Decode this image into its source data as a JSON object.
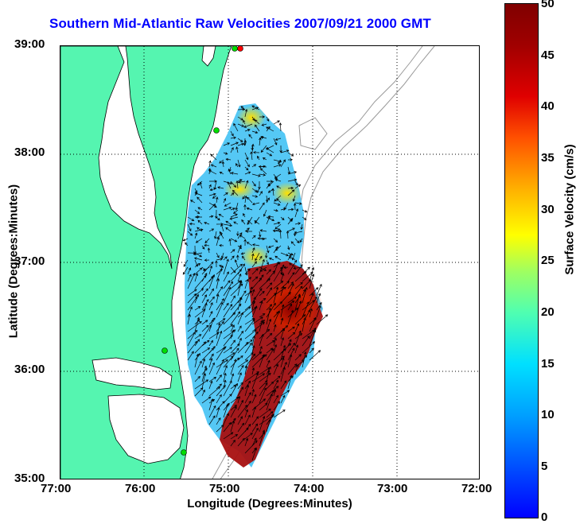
{
  "title": "Southern Mid-Atlantic Raw Velocities 2007/09/21 2000 GMT",
  "x_axis": {
    "label": "Longitude (Degrees:Minutes)",
    "ticks": [
      "77:00",
      "76:00",
      "75:00",
      "74:00",
      "73:00",
      "72:00"
    ]
  },
  "y_axis": {
    "label": "Latitude (Degrees:Minutes)",
    "ticks": [
      "39:00",
      "38:00",
      "37:00",
      "36:00",
      "35:00"
    ]
  },
  "colorbar": {
    "label": "Surface Velocity (cm/s)",
    "ticks": [
      "50",
      "45",
      "40",
      "35",
      "30",
      "25",
      "20",
      "15",
      "10",
      "5",
      "0"
    ],
    "range": [
      0,
      50
    ]
  },
  "colors": {
    "title": "#0000ff",
    "land": "#55f5b0",
    "coastline": "#000000",
    "bathymetry": "#999999",
    "station_marker": "#00dd00",
    "station_marker_red": "#ff0000"
  },
  "map": {
    "lon_range": [
      -77,
      -72
    ],
    "lat_range": [
      35,
      39
    ],
    "grid": "dotted",
    "vector_color": "#000000"
  }
}
